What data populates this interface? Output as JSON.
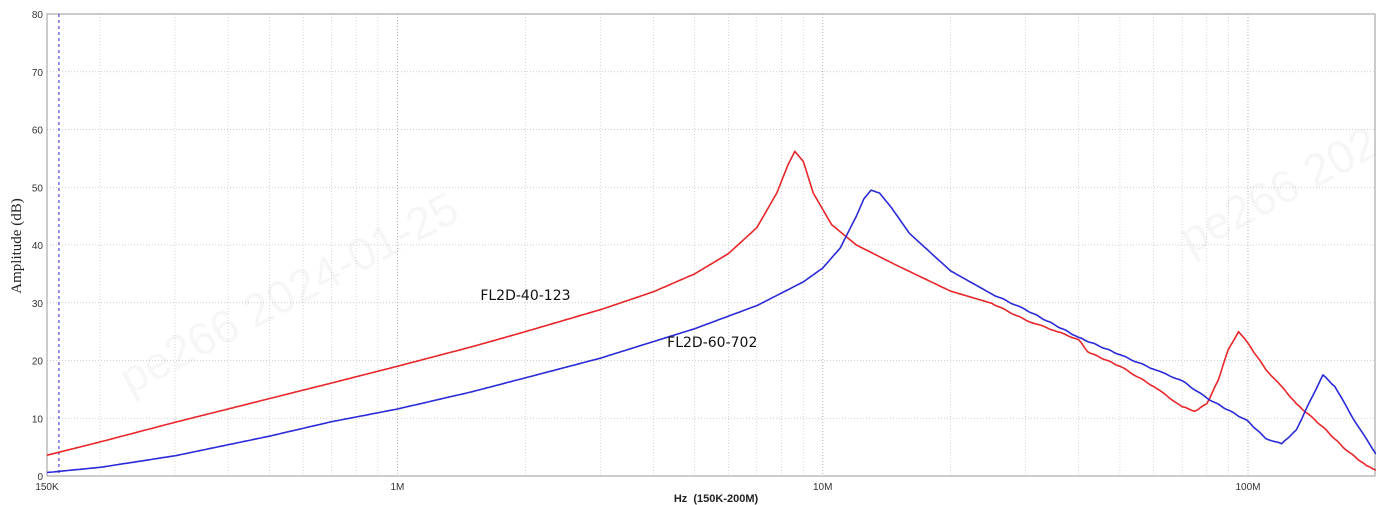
{
  "chart_data": {
    "type": "line",
    "title": "",
    "xlabel": "Hz  (150K-200M)",
    "ylabel": "Amplitude (dB)",
    "x_scale": "log",
    "xlim": [
      150000,
      200000000
    ],
    "ylim": [
      0,
      80
    ],
    "grid": true,
    "x_ticks": [
      {
        "value": 150000,
        "label": "150K"
      },
      {
        "value": 1000000,
        "label": "1M"
      },
      {
        "value": 10000000,
        "label": "10M"
      },
      {
        "value": 100000000,
        "label": "100M"
      }
    ],
    "y_ticks": [
      0,
      10,
      20,
      30,
      40,
      50,
      60,
      70,
      80
    ],
    "marker_x": 160000,
    "watermark": "pe266  2024-01-25",
    "series": [
      {
        "name": "FL2D-40-123",
        "color": "#e8262a",
        "label_at": [
          2000000,
          30.5
        ],
        "points": [
          [
            150000,
            3.6
          ],
          [
            200000,
            5.9
          ],
          [
            300000,
            9.3
          ],
          [
            500000,
            13.4
          ],
          [
            700000,
            16.1
          ],
          [
            1000000,
            19.0
          ],
          [
            1500000,
            22.4
          ],
          [
            2000000,
            25.0
          ],
          [
            3000000,
            28.8
          ],
          [
            4000000,
            31.9
          ],
          [
            5000000,
            35.0
          ],
          [
            6000000,
            38.5
          ],
          [
            7000000,
            43.0
          ],
          [
            7800000,
            49.0
          ],
          [
            8300000,
            54.0
          ],
          [
            8600000,
            56.2
          ],
          [
            9000000,
            54.5
          ],
          [
            9500000,
            49.0
          ],
          [
            10500000,
            43.5
          ],
          [
            12000000,
            40.0
          ],
          [
            15000000,
            36.4
          ],
          [
            20000000,
            32.0
          ],
          [
            25000000,
            29.9
          ],
          [
            30000000,
            27.0
          ],
          [
            35000000,
            25.2
          ],
          [
            40000000,
            23.6
          ],
          [
            42000000,
            21.5
          ],
          [
            50000000,
            19.0
          ],
          [
            60000000,
            15.5
          ],
          [
            70000000,
            12.0
          ],
          [
            75000000,
            11.2
          ],
          [
            80000000,
            12.5
          ],
          [
            85000000,
            16.5
          ],
          [
            90000000,
            22.0
          ],
          [
            95000000,
            25.0
          ],
          [
            100000000,
            23.0
          ],
          [
            110000000,
            18.5
          ],
          [
            120000000,
            15.5
          ],
          [
            130000000,
            12.5
          ],
          [
            150000000,
            8.5
          ],
          [
            170000000,
            4.5
          ],
          [
            190000000,
            1.8
          ],
          [
            200000000,
            1.0
          ]
        ]
      },
      {
        "name": "FL2D-60-702",
        "color": "#2a2ad8",
        "label_at": [
          5500000,
          22.3
        ],
        "points": [
          [
            150000,
            0.6
          ],
          [
            200000,
            1.5
          ],
          [
            300000,
            3.5
          ],
          [
            500000,
            6.9
          ],
          [
            700000,
            9.4
          ],
          [
            1000000,
            11.6
          ],
          [
            1500000,
            14.6
          ],
          [
            2000000,
            17.0
          ],
          [
            3000000,
            20.4
          ],
          [
            5000000,
            25.5
          ],
          [
            7000000,
            29.5
          ],
          [
            9000000,
            33.6
          ],
          [
            10000000,
            36.0
          ],
          [
            11000000,
            39.5
          ],
          [
            12000000,
            45.0
          ],
          [
            12500000,
            48.0
          ],
          [
            13000000,
            49.5
          ],
          [
            13600000,
            49.0
          ],
          [
            14500000,
            46.5
          ],
          [
            16000000,
            42.0
          ],
          [
            20000000,
            35.5
          ],
          [
            25000000,
            31.5
          ],
          [
            30000000,
            28.8
          ],
          [
            40000000,
            24.0
          ],
          [
            50000000,
            21.0
          ],
          [
            60000000,
            18.5
          ],
          [
            70000000,
            16.5
          ],
          [
            80000000,
            13.5
          ],
          [
            100000000,
            9.5
          ],
          [
            110000000,
            6.5
          ],
          [
            120000000,
            5.6
          ],
          [
            130000000,
            8.0
          ],
          [
            140000000,
            13.0
          ],
          [
            150000000,
            17.5
          ],
          [
            160000000,
            15.5
          ],
          [
            180000000,
            9.0
          ],
          [
            200000000,
            3.8
          ]
        ]
      }
    ]
  }
}
